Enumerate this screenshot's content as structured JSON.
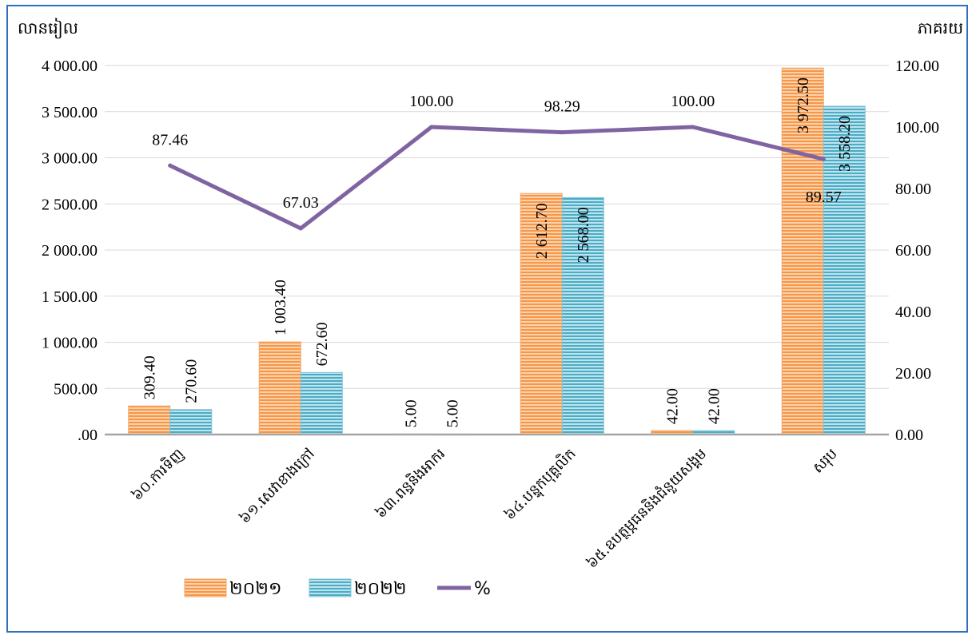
{
  "chart_data": {
    "type": "bar",
    "categories": [
      "៦០.ការទិញ",
      "៦១.សេវាខាងក្រៅ",
      "៦៣.ពន្ធនិងអាករ",
      "៦៤.បន្ទុកបុគ្គលិក",
      "៦៥.ឧបត្ថម្ភធននិងជំនួយសង្គម",
      "សរុប"
    ],
    "series": [
      {
        "name": "២០២១",
        "values": [
          309.4,
          1003.4,
          5.0,
          2612.7,
          42.0,
          3972.5
        ],
        "labels": [
          "309.40",
          "1 003.40",
          "5.00",
          "2 612.70",
          "42.00",
          "3 972.50"
        ],
        "color": "#f79646"
      },
      {
        "name": "២០២២",
        "values": [
          270.6,
          672.6,
          5.0,
          2568.0,
          42.0,
          3558.2
        ],
        "labels": [
          "270.60",
          "672.60",
          "5.00",
          "2 568.00",
          "42.00",
          "3 558.20"
        ],
        "color": "#4bacc6"
      }
    ],
    "line_series": {
      "name": "%",
      "values": [
        87.46,
        67.03,
        100.0,
        98.29,
        100.0,
        89.57
      ],
      "labels": [
        "87.46",
        "67.03",
        "100.00",
        "98.29",
        "100.00",
        "89.57"
      ],
      "color": "#8064a2",
      "axis": "right"
    },
    "ylabel": "លានរៀល",
    "y2label": "ភាគរយ",
    "ylim": [
      0,
      4000
    ],
    "y2lim": [
      0,
      120
    ],
    "yticks": [
      ".00",
      "500.00",
      "1 000.00",
      "1 500.00",
      "2 000.00",
      "2 500.00",
      "3 000.00",
      "3 500.00",
      "4 000.00"
    ],
    "y2ticks": [
      "0.00",
      "20.00",
      "40.00",
      "60.00",
      "80.00",
      "100.00",
      "120.00"
    ],
    "grid": true,
    "legend": "bottom"
  }
}
